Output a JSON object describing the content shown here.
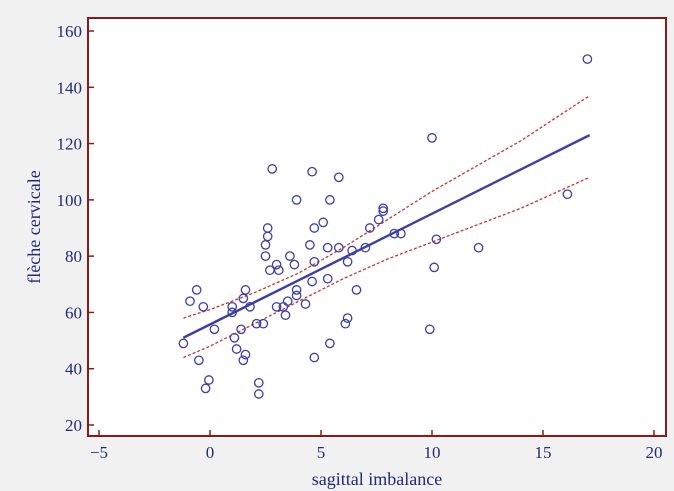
{
  "chart_data": {
    "type": "scatter",
    "title": "",
    "xlabel": "sagittal imbalance",
    "ylabel": "flèche cervicale",
    "xlim": [
      -5,
      20
    ],
    "ylim": [
      20,
      160
    ],
    "xticks": [
      -5,
      0,
      5,
      10,
      15,
      20
    ],
    "yticks": [
      20,
      40,
      60,
      80,
      100,
      120,
      140,
      160
    ],
    "grid": false,
    "legend": "none",
    "colors": {
      "figure_background": "#f1f1f1",
      "plot_background": "#ffffff",
      "frame": "#8b1a1a",
      "axis_text": "#1f2a78",
      "points": "#3d3da8",
      "regression_line": "#3b3fa6",
      "confidence_band": "#c0392b"
    },
    "points": [
      {
        "x": -1.2,
        "y": 49
      },
      {
        "x": -0.9,
        "y": 64
      },
      {
        "x": -0.6,
        "y": 68
      },
      {
        "x": -0.5,
        "y": 43
      },
      {
        "x": -0.3,
        "y": 62
      },
      {
        "x": -0.2,
        "y": 33
      },
      {
        "x": -0.05,
        "y": 36
      },
      {
        "x": 0.2,
        "y": 54
      },
      {
        "x": 1.0,
        "y": 62
      },
      {
        "x": 1.0,
        "y": 60
      },
      {
        "x": 1.1,
        "y": 51
      },
      {
        "x": 1.2,
        "y": 47
      },
      {
        "x": 1.4,
        "y": 54
      },
      {
        "x": 1.5,
        "y": 65
      },
      {
        "x": 1.5,
        "y": 43
      },
      {
        "x": 1.6,
        "y": 45
      },
      {
        "x": 1.6,
        "y": 68
      },
      {
        "x": 1.8,
        "y": 62
      },
      {
        "x": 2.1,
        "y": 56
      },
      {
        "x": 2.2,
        "y": 35
      },
      {
        "x": 2.2,
        "y": 31
      },
      {
        "x": 2.4,
        "y": 56
      },
      {
        "x": 2.5,
        "y": 80
      },
      {
        "x": 2.5,
        "y": 84
      },
      {
        "x": 2.6,
        "y": 87
      },
      {
        "x": 2.6,
        "y": 90
      },
      {
        "x": 2.7,
        "y": 75
      },
      {
        "x": 2.8,
        "y": 111
      },
      {
        "x": 3.0,
        "y": 62
      },
      {
        "x": 3.0,
        "y": 77
      },
      {
        "x": 3.1,
        "y": 75
      },
      {
        "x": 3.3,
        "y": 62
      },
      {
        "x": 3.4,
        "y": 59
      },
      {
        "x": 3.5,
        "y": 64
      },
      {
        "x": 3.6,
        "y": 80
      },
      {
        "x": 3.8,
        "y": 77
      },
      {
        "x": 3.9,
        "y": 100
      },
      {
        "x": 3.9,
        "y": 68
      },
      {
        "x": 3.9,
        "y": 66
      },
      {
        "x": 4.3,
        "y": 63
      },
      {
        "x": 4.5,
        "y": 84
      },
      {
        "x": 4.6,
        "y": 110
      },
      {
        "x": 4.6,
        "y": 71
      },
      {
        "x": 4.7,
        "y": 78
      },
      {
        "x": 4.7,
        "y": 90
      },
      {
        "x": 4.7,
        "y": 44
      },
      {
        "x": 5.1,
        "y": 92
      },
      {
        "x": 5.3,
        "y": 83
      },
      {
        "x": 5.3,
        "y": 72
      },
      {
        "x": 5.4,
        "y": 100
      },
      {
        "x": 5.4,
        "y": 49
      },
      {
        "x": 5.8,
        "y": 83
      },
      {
        "x": 5.8,
        "y": 108
      },
      {
        "x": 6.1,
        "y": 56
      },
      {
        "x": 6.2,
        "y": 58
      },
      {
        "x": 6.2,
        "y": 78
      },
      {
        "x": 6.4,
        "y": 82
      },
      {
        "x": 6.6,
        "y": 68
      },
      {
        "x": 7.0,
        "y": 83
      },
      {
        "x": 7.2,
        "y": 90
      },
      {
        "x": 7.6,
        "y": 93
      },
      {
        "x": 7.8,
        "y": 96
      },
      {
        "x": 7.8,
        "y": 97
      },
      {
        "x": 8.3,
        "y": 88
      },
      {
        "x": 8.6,
        "y": 88
      },
      {
        "x": 9.9,
        "y": 54
      },
      {
        "x": 10.0,
        "y": 122
      },
      {
        "x": 10.1,
        "y": 76
      },
      {
        "x": 10.2,
        "y": 86
      },
      {
        "x": 12.1,
        "y": 83
      },
      {
        "x": 16.1,
        "y": 102
      },
      {
        "x": 17.0,
        "y": 150
      }
    ],
    "regression": {
      "x0": -1.2,
      "y0": 51,
      "x1": 17.1,
      "y1": 123
    },
    "confidence_upper": [
      {
        "x": -1.2,
        "y": 58
      },
      {
        "x": 0,
        "y": 61
      },
      {
        "x": 2,
        "y": 67
      },
      {
        "x": 4,
        "y": 74
      },
      {
        "x": 6,
        "y": 83
      },
      {
        "x": 8,
        "y": 93
      },
      {
        "x": 10,
        "y": 103
      },
      {
        "x": 12,
        "y": 112
      },
      {
        "x": 14,
        "y": 121
      },
      {
        "x": 17.1,
        "y": 137
      }
    ],
    "confidence_lower": [
      {
        "x": -1.2,
        "y": 44
      },
      {
        "x": 0,
        "y": 48
      },
      {
        "x": 2,
        "y": 56
      },
      {
        "x": 4,
        "y": 64
      },
      {
        "x": 6,
        "y": 72
      },
      {
        "x": 8,
        "y": 79
      },
      {
        "x": 10,
        "y": 85
      },
      {
        "x": 12,
        "y": 91
      },
      {
        "x": 14,
        "y": 97
      },
      {
        "x": 17.1,
        "y": 108
      }
    ]
  }
}
